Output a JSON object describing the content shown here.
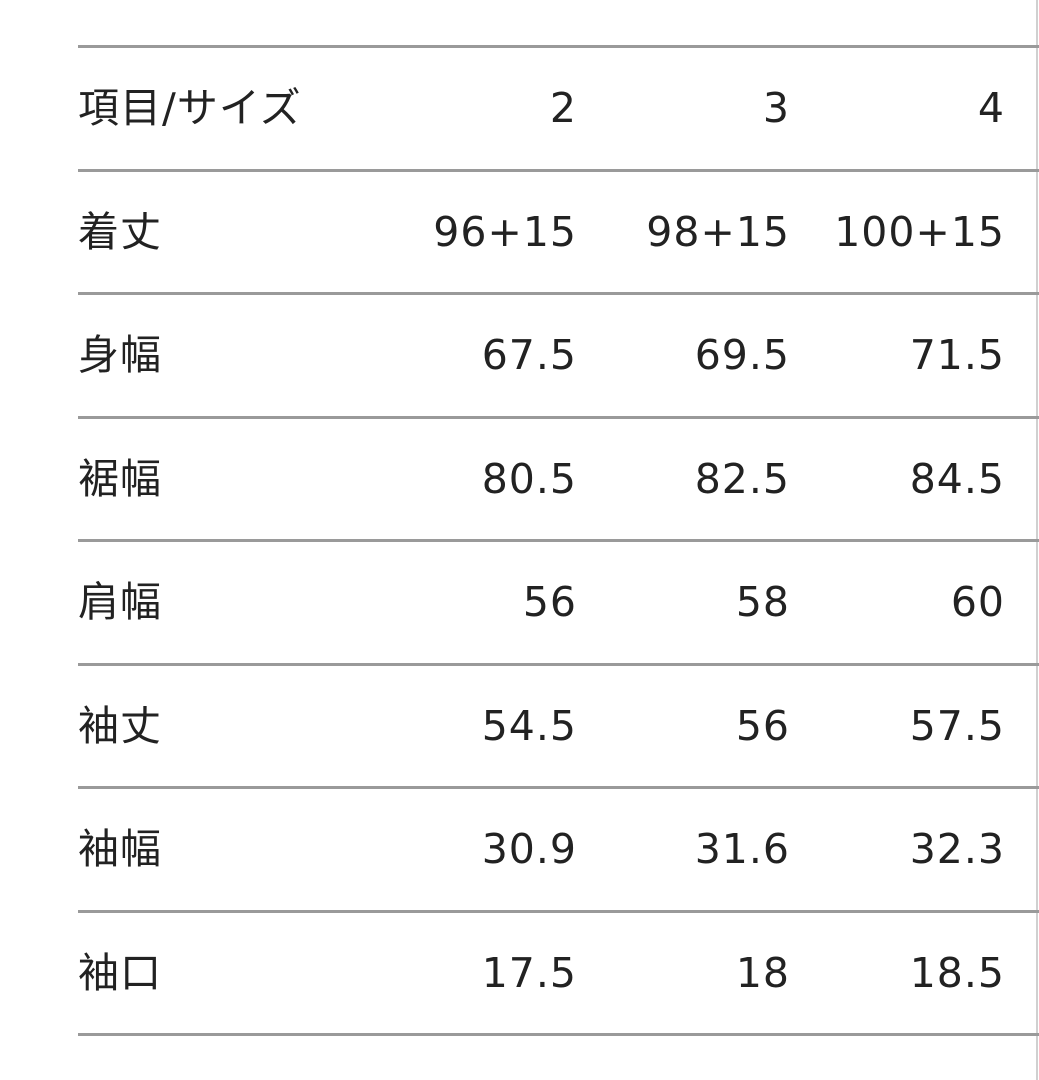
{
  "header": [
    "項目/サイズ",
    "2",
    "3",
    "4"
  ],
  "rows": [
    [
      "着丈",
      "96+15",
      "98+15",
      "100+15"
    ],
    [
      "身幅",
      "67.5",
      "69.5",
      "71.5"
    ],
    [
      "裾幅",
      "80.5",
      "82.5",
      "84.5"
    ],
    [
      "肩幅",
      "56",
      "58",
      "60"
    ],
    [
      "袖丈",
      "54.5",
      "56",
      "57.5"
    ],
    [
      "袖幅",
      "30.9",
      "31.6",
      "32.3"
    ],
    [
      "袖口",
      "17.5",
      "18",
      "18.5"
    ]
  ]
}
